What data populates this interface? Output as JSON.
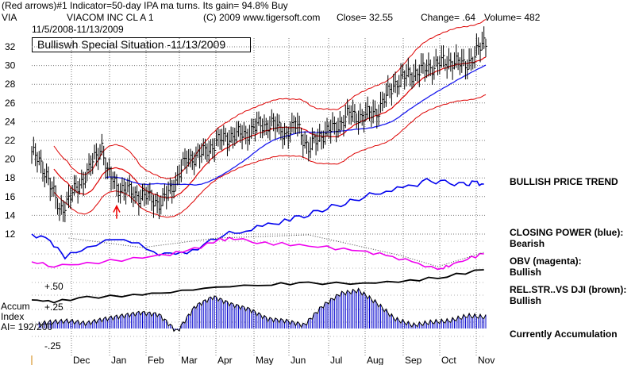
{
  "header": {
    "line1": "(Red arrows)#1 Indicator=50-day IPA ma turns. Its gain= 94.8% Buy",
    "symbol": "VIA",
    "company": "VIACOM INC CL A 1",
    "copyright": "(C) 2009 www.tigersoft.com",
    "close": "Close=  32.55",
    "change": "Change= .64",
    "volume": "Volume= 482",
    "date_range": "11/5/2008-11/13/2009"
  },
  "special_label": "Bulliswh Special Situation -11/13/2009",
  "right_labels": {
    "price_trend": "BULLISH PRICE TREND",
    "closing_power_1": "CLOSING POWER (blue):",
    "closing_power_2": "Bearish",
    "obv_1": "OBV (magenta):",
    "obv_2": "Bullish",
    "relstr_1": "REL.STR..VS DJI (brown):",
    "relstr_2": "Bullish",
    "accum": "Currently Accumulation"
  },
  "accum_label": {
    "line1": "Accum",
    "line2": "Index",
    "line3": "AI= 192/200"
  },
  "colors": {
    "price_bars": "#000000",
    "bollinger_bands": "#dd0000",
    "ma_blue": "#1a1aee",
    "closing_power": "#0000ee",
    "obv": "#ee00ee",
    "rel_strength": "#000000",
    "accum_index": "#0000cc",
    "buy_arrow": "#ee0000",
    "grid": "#7a7a7a"
  },
  "chart_data": {
    "type": "line",
    "title": "Bulliswh Special Situation -11/13/2009",
    "price_axis": {
      "ticks": [
        12,
        14,
        16,
        18,
        20,
        22,
        24,
        26,
        28,
        30,
        32
      ],
      "ylim": [
        11.5,
        33.5
      ]
    },
    "accum_axis": {
      "ticks": [
        "+.50",
        "+.25",
        "-.25"
      ]
    },
    "month_labels": [
      "Dec",
      "Jan",
      "Feb",
      "Mar",
      "Apr",
      "May",
      "Jun",
      "Jul",
      "Aug",
      "Sep",
      "Oct",
      "Nov"
    ],
    "grid": true,
    "price_series": {
      "name": "VIA",
      "dates": [
        "Nov-2008",
        "Dec",
        "Dec",
        "Jan",
        "Jan",
        "Feb",
        "Feb",
        "Mar",
        "Mar",
        "Apr",
        "Apr",
        "May",
        "May",
        "Jun",
        "Jun",
        "Jul",
        "Jul",
        "Aug",
        "Aug",
        "Sep",
        "Sep",
        "Oct",
        "Oct",
        "Nov"
      ],
      "points": [
        [
          0,
          20.8
        ],
        [
          8,
          18.5
        ],
        [
          15,
          14.5
        ],
        [
          23,
          16.5
        ],
        [
          30,
          18.5
        ],
        [
          38,
          21.5
        ],
        [
          41,
          18.5
        ],
        [
          47,
          17
        ],
        [
          52,
          16.6
        ],
        [
          58,
          16.1
        ],
        [
          64,
          15.9
        ],
        [
          70,
          15.2
        ],
        [
          76,
          17
        ],
        [
          84,
          20
        ],
        [
          92,
          20.5
        ],
        [
          100,
          21.8
        ],
        [
          108,
          22.5
        ],
        [
          116,
          22.7
        ],
        [
          122,
          23.5
        ],
        [
          130,
          23.8
        ],
        [
          138,
          22.7
        ],
        [
          144,
          23.7
        ],
        [
          150,
          21
        ],
        [
          156,
          22.5
        ],
        [
          164,
          23.3
        ],
        [
          172,
          24.8
        ],
        [
          180,
          24.5
        ],
        [
          188,
          25.3
        ],
        [
          196,
          28
        ],
        [
          204,
          29
        ],
        [
          212,
          29.5
        ],
        [
          220,
          30.2
        ],
        [
          228,
          30.5
        ],
        [
          234,
          30
        ],
        [
          240,
          31
        ],
        [
          245,
          32.55
        ]
      ]
    },
    "accum_series": {
      "name": "Accum Index",
      "values": [
        0.05,
        0.1,
        0.12,
        0.08,
        0.15,
        0.2,
        0.25,
        0.22,
        -0.05,
        0.35,
        0.5,
        0.38,
        0.3,
        0.15,
        0.12,
        0.05,
        0.35,
        0.55,
        0.6,
        0.4,
        0.15,
        0.05,
        0.1,
        0.12,
        0.2,
        0.18
      ]
    },
    "buy_signals": [
      {
        "date": "Jan",
        "price": 15.0,
        "label": "#1 Indicator"
      }
    ]
  }
}
